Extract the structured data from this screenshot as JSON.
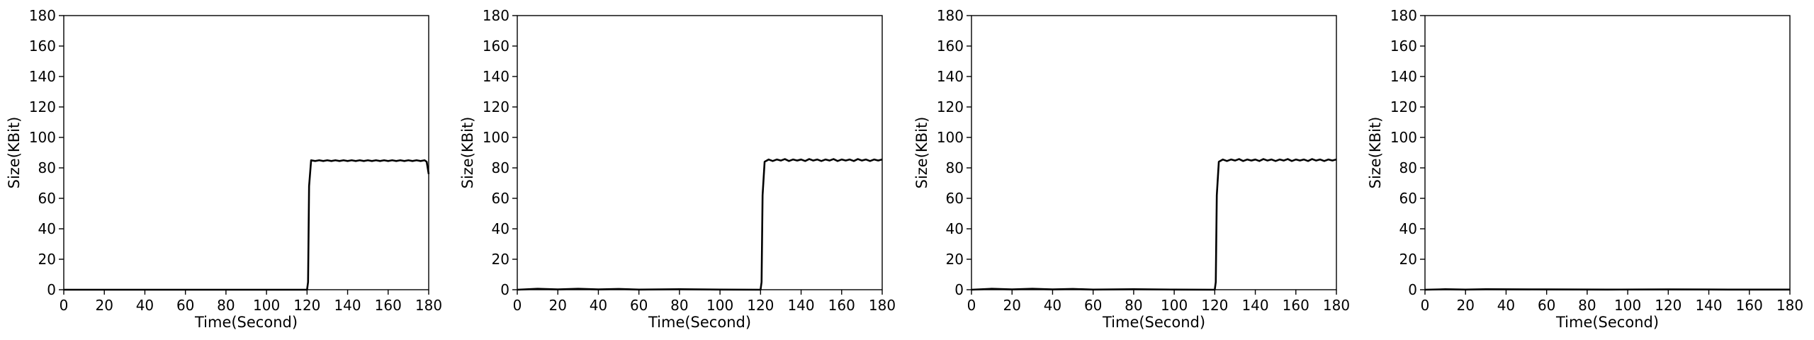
{
  "chart_data": [
    {
      "type": "line",
      "xlabel": "Time(Second)",
      "ylabel": "Size(KBit)",
      "xlim": [
        0,
        180
      ],
      "ylim": [
        0,
        180
      ],
      "xticks": [
        0,
        20,
        40,
        60,
        80,
        100,
        120,
        140,
        160,
        180
      ],
      "yticks": [
        0,
        20,
        40,
        60,
        80,
        100,
        120,
        140,
        160,
        180
      ],
      "grid": false,
      "series": [
        {
          "color": "#000000",
          "points": [
            [
              0,
              0
            ],
            [
              120,
              0
            ],
            [
              120.5,
              5
            ],
            [
              121,
              68
            ],
            [
              122,
              85
            ],
            [
              124,
              84.5
            ],
            [
              126,
              85
            ],
            [
              128,
              84.5
            ],
            [
              130,
              85
            ],
            [
              132,
              84.5
            ],
            [
              134,
              85
            ],
            [
              136,
              84.5
            ],
            [
              138,
              85
            ],
            [
              140,
              84.5
            ],
            [
              142,
              85
            ],
            [
              144,
              84.5
            ],
            [
              146,
              85
            ],
            [
              148,
              84.5
            ],
            [
              150,
              85
            ],
            [
              152,
              84.5
            ],
            [
              154,
              85
            ],
            [
              156,
              84.5
            ],
            [
              158,
              85
            ],
            [
              160,
              84.5
            ],
            [
              162,
              85
            ],
            [
              164,
              84.5
            ],
            [
              166,
              85
            ],
            [
              168,
              84.5
            ],
            [
              170,
              85
            ],
            [
              172,
              84.5
            ],
            [
              174,
              85
            ],
            [
              176,
              84.5
            ],
            [
              178,
              85
            ],
            [
              179,
              84
            ],
            [
              180,
              76
            ]
          ]
        }
      ]
    },
    {
      "type": "line",
      "xlabel": "Time(Second)",
      "ylabel": "Size(KBit)",
      "xlim": [
        0,
        180
      ],
      "ylim": [
        0,
        180
      ],
      "xticks": [
        0,
        20,
        40,
        60,
        80,
        100,
        120,
        140,
        160,
        180
      ],
      "yticks": [
        0,
        20,
        40,
        60,
        80,
        100,
        120,
        140,
        160,
        180
      ],
      "grid": false,
      "series": [
        {
          "color": "#000000",
          "points": [
            [
              0,
              0
            ],
            [
              10,
              0.6
            ],
            [
              20,
              0.2
            ],
            [
              30,
              0.6
            ],
            [
              40,
              0.2
            ],
            [
              50,
              0.5
            ],
            [
              60,
              0.1
            ],
            [
              80,
              0.3
            ],
            [
              100,
              0.1
            ],
            [
              120,
              0
            ],
            [
              120.5,
              5
            ],
            [
              121,
              62
            ],
            [
              122,
              84
            ],
            [
              124,
              85.5
            ],
            [
              126,
              84.5
            ],
            [
              128,
              85.5
            ],
            [
              130,
              84.8
            ],
            [
              132,
              85.8
            ],
            [
              134,
              84.5
            ],
            [
              136,
              85.5
            ],
            [
              138,
              84.8
            ],
            [
              140,
              85.5
            ],
            [
              142,
              84.5
            ],
            [
              144,
              85.8
            ],
            [
              146,
              84.8
            ],
            [
              148,
              85.5
            ],
            [
              150,
              84.5
            ],
            [
              152,
              85.5
            ],
            [
              154,
              84.8
            ],
            [
              156,
              85.8
            ],
            [
              158,
              84.5
            ],
            [
              160,
              85.5
            ],
            [
              162,
              84.8
            ],
            [
              164,
              85.5
            ],
            [
              166,
              84.5
            ],
            [
              168,
              85.8
            ],
            [
              170,
              84.8
            ],
            [
              172,
              85.5
            ],
            [
              174,
              84.5
            ],
            [
              176,
              85.5
            ],
            [
              178,
              84.8
            ],
            [
              180,
              85.5
            ]
          ]
        }
      ]
    },
    {
      "type": "line",
      "xlabel": "Time(Second)",
      "ylabel": "Size(KBit)",
      "xlim": [
        0,
        180
      ],
      "ylim": [
        0,
        180
      ],
      "xticks": [
        0,
        20,
        40,
        60,
        80,
        100,
        120,
        140,
        160,
        180
      ],
      "yticks": [
        0,
        20,
        40,
        60,
        80,
        100,
        120,
        140,
        160,
        180
      ],
      "grid": false,
      "series": [
        {
          "color": "#000000",
          "points": [
            [
              0,
              0
            ],
            [
              10,
              0.6
            ],
            [
              20,
              0.2
            ],
            [
              30,
              0.6
            ],
            [
              40,
              0.2
            ],
            [
              50,
              0.5
            ],
            [
              60,
              0.1
            ],
            [
              80,
              0.3
            ],
            [
              100,
              0.1
            ],
            [
              120,
              0
            ],
            [
              120.5,
              5
            ],
            [
              121,
              62
            ],
            [
              122,
              84
            ],
            [
              124,
              85.5
            ],
            [
              126,
              84.5
            ],
            [
              128,
              85.5
            ],
            [
              130,
              84.8
            ],
            [
              132,
              85.8
            ],
            [
              134,
              84.5
            ],
            [
              136,
              85.5
            ],
            [
              138,
              84.8
            ],
            [
              140,
              85.5
            ],
            [
              142,
              84.5
            ],
            [
              144,
              85.8
            ],
            [
              146,
              84.8
            ],
            [
              148,
              85.5
            ],
            [
              150,
              84.5
            ],
            [
              152,
              85.5
            ],
            [
              154,
              84.8
            ],
            [
              156,
              85.8
            ],
            [
              158,
              84.5
            ],
            [
              160,
              85.5
            ],
            [
              162,
              84.8
            ],
            [
              164,
              85.5
            ],
            [
              166,
              84.5
            ],
            [
              168,
              85.8
            ],
            [
              170,
              84.8
            ],
            [
              172,
              85.5
            ],
            [
              174,
              84.5
            ],
            [
              176,
              85.5
            ],
            [
              178,
              84.8
            ],
            [
              180,
              85.5
            ]
          ]
        }
      ]
    },
    {
      "type": "line",
      "xlabel": "Time(Second)",
      "ylabel": "Size(KBit)",
      "xlim": [
        0,
        180
      ],
      "ylim": [
        0,
        180
      ],
      "xticks": [
        0,
        20,
        40,
        60,
        80,
        100,
        120,
        140,
        160,
        180
      ],
      "yticks": [
        0,
        20,
        40,
        60,
        80,
        100,
        120,
        140,
        160,
        180
      ],
      "grid": false,
      "series": [
        {
          "color": "#000000",
          "points": [
            [
              0,
              0
            ],
            [
              10,
              0.3
            ],
            [
              20,
              0.1
            ],
            [
              30,
              0.3
            ],
            [
              60,
              0.2
            ],
            [
              90,
              0.1
            ],
            [
              120,
              0.2
            ],
            [
              150,
              0.1
            ],
            [
              180,
              0.1
            ]
          ]
        }
      ]
    }
  ]
}
